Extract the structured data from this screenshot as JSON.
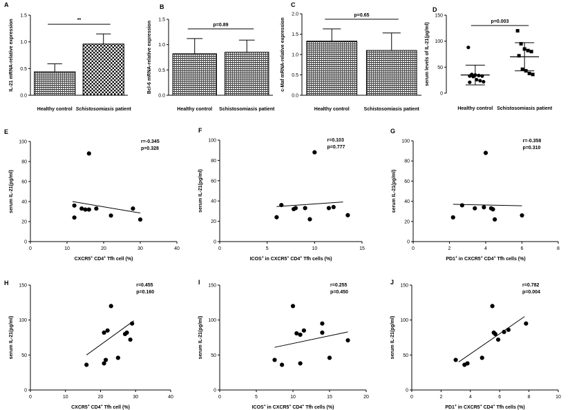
{
  "chart_data": [
    {
      "id": "A",
      "type": "bar",
      "panel_label": "A",
      "categories": [
        {
          "text": "Healthy control",
          "italic": false
        },
        {
          "text": "Schistosomiasis",
          "italic": true,
          "suffix": " patient"
        }
      ],
      "values": [
        0.44,
        0.96
      ],
      "errors": [
        0.15,
        0.19
      ],
      "ylabel": "IL-21 mRNA-relative expression",
      "ylim": [
        0,
        1.5
      ],
      "yticks": [
        "0.0",
        "0.5",
        "1.0",
        "1.5"
      ],
      "annotation": "**",
      "fills": [
        "hatch",
        "check"
      ]
    },
    {
      "id": "B",
      "type": "bar",
      "panel_label": "B",
      "categories": [
        {
          "text": "Healthy control",
          "italic": false
        },
        {
          "text": "Schistosomiasis patient",
          "italic": false
        }
      ],
      "values": [
        0.82,
        0.85
      ],
      "errors": [
        0.3,
        0.24
      ],
      "ylabel": "Bcl-6 mRNA-relative expression",
      "ylim": [
        0,
        1.5
      ],
      "yticks": [
        "0.0",
        "0.5",
        "1.0",
        "1.5"
      ],
      "annotation": "p=0.89",
      "fills": [
        "hatch",
        "hatch"
      ]
    },
    {
      "id": "C",
      "type": "bar",
      "panel_label": "C",
      "categories": [
        {
          "text": "Healthy control",
          "italic": false
        },
        {
          "text": "Schistosomiasis patient",
          "italic": false
        }
      ],
      "values": [
        1.33,
        1.1
      ],
      "errors": [
        0.3,
        0.43
      ],
      "ylabel": "c-Maf mRNA-relative expression",
      "ylim": [
        0,
        2.0
      ],
      "yticks": [
        "0.0",
        "0.5",
        "1.0",
        "1.5",
        "2.0"
      ],
      "annotation": "p=0.65",
      "fills": [
        "hatch",
        "hatch"
      ]
    },
    {
      "id": "D",
      "type": "scatter",
      "panel_label": "D",
      "categories": [
        {
          "text": "Healthy control",
          "italic": false
        },
        {
          "text": "Schistosomiasis patient",
          "italic": false
        }
      ],
      "groups": [
        {
          "name": "Healthy control",
          "marker": "circle",
          "mean": 35,
          "sd": 19,
          "values": [
            88,
            36,
            35,
            34,
            33,
            33,
            32,
            26,
            24,
            22,
            21
          ]
        },
        {
          "name": "Schistosomiasis patient",
          "marker": "square",
          "mean": 70,
          "sd": 27,
          "values": [
            120,
            95,
            85,
            82,
            80,
            72,
            46,
            43,
            38,
            36
          ]
        }
      ],
      "ylabel": "serum levels of IL-21(pg/ml)",
      "ylim": [
        0,
        150
      ],
      "yticks": [
        "0",
        "50",
        "100",
        "150"
      ],
      "annotation": "p=0.003"
    },
    {
      "id": "E",
      "type": "scatter",
      "panel_label": "E",
      "x": [
        12,
        12,
        14,
        15,
        16,
        18,
        22,
        28,
        30,
        16
      ],
      "y": [
        36,
        24,
        33,
        32,
        32,
        33,
        26,
        33,
        22,
        88
      ],
      "trend": [
        [
          11.5,
          40
        ],
        [
          30,
          28.5
        ]
      ],
      "xlim": [
        0,
        40
      ],
      "ylim": [
        0,
        100
      ],
      "xticks": [
        "0",
        "10",
        "20",
        "30",
        "40"
      ],
      "yticks": [
        "0",
        "20",
        "40",
        "60",
        "80",
        "100"
      ],
      "xlabel": [
        {
          "t": "CXCR5"
        },
        {
          "t": "+",
          "sup": true
        },
        {
          "t": "  CD4"
        },
        {
          "t": "+",
          "sup": true
        },
        {
          "t": "  Tfh cell (%)"
        }
      ],
      "ylabel": "serum IL-21(pg/ml)",
      "r": "r=-0.345",
      "p": "p=0.328"
    },
    {
      "id": "F",
      "type": "scatter",
      "panel_label": "F",
      "x": [
        6,
        6.5,
        7.8,
        8,
        9,
        9.5,
        11.5,
        12,
        13.5,
        10
      ],
      "y": [
        24,
        36,
        32,
        33,
        33,
        22,
        33,
        34,
        26,
        88
      ],
      "trend": [
        [
          6,
          34.5
        ],
        [
          13,
          39
        ]
      ],
      "xlim": [
        0,
        15
      ],
      "ylim": [
        0,
        100
      ],
      "xticks": [
        "0",
        "5",
        "10",
        "15"
      ],
      "yticks": [
        "0",
        "20",
        "40",
        "60",
        "80",
        "100"
      ],
      "xlabel": [
        {
          "t": "ICOS"
        },
        {
          "t": "+",
          "sup": true
        },
        {
          "t": "  in  CXCR5"
        },
        {
          "t": "+",
          "sup": true
        },
        {
          "t": "  CD4"
        },
        {
          "t": "+",
          "sup": true
        },
        {
          "t": "  Tfh cells (%)"
        }
      ],
      "ylabel": "serum IL-21(pg/ml)",
      "r": "r=0.103",
      "p": "p=0.777"
    },
    {
      "id": "G",
      "type": "scatter",
      "panel_label": "G",
      "x": [
        2.2,
        2.7,
        3.4,
        3.9,
        4.3,
        4.4,
        4.5,
        6.0,
        4.0
      ],
      "y": [
        24,
        36,
        33,
        34,
        33,
        32,
        22,
        26,
        88
      ],
      "trend": [
        [
          2.2,
          37
        ],
        [
          6,
          35.5
        ]
      ],
      "xlim": [
        0,
        8
      ],
      "ylim": [
        0,
        100
      ],
      "xticks": [
        "0",
        "2",
        "4",
        "6",
        "8"
      ],
      "yticks": [
        "0",
        "20",
        "40",
        "60",
        "80",
        "100"
      ],
      "xlabel": [
        {
          "t": "PD1"
        },
        {
          "t": "+",
          "sup": true
        },
        {
          "t": "  in CXCR5"
        },
        {
          "t": "+",
          "sup": true
        },
        {
          "t": "  CD4"
        },
        {
          "t": "+",
          "sup": true
        },
        {
          "t": "  Tfh cells (%)"
        }
      ],
      "ylabel": "serum IL-21(pg/ml)",
      "r": "r=-0.358",
      "p": "p=0.310"
    },
    {
      "id": "H",
      "type": "scatter",
      "panel_label": "H",
      "x": [
        16,
        21,
        21.5,
        21,
        22,
        23,
        25,
        27,
        27.5,
        28.5,
        29
      ],
      "y": [
        36,
        38,
        43,
        82,
        85,
        120,
        46,
        80,
        82,
        72,
        95
      ],
      "trend": [
        [
          16,
          50
        ],
        [
          29.5,
          99
        ]
      ],
      "xlim": [
        0,
        40
      ],
      "ylim": [
        0,
        150
      ],
      "xticks": [
        "0",
        "10",
        "20",
        "30",
        "40"
      ],
      "yticks": [
        "0",
        "50",
        "100",
        "150"
      ],
      "xlabel": [
        {
          "t": "CXCR5"
        },
        {
          "t": "+",
          "sup": true
        },
        {
          "t": "  CD4"
        },
        {
          "t": "+",
          "sup": true
        },
        {
          "t": "  Tfh cell (%)"
        }
      ],
      "ylabel": "serum IL-21(pg/ml)",
      "r": "r=0.455",
      "p": "p=0.160"
    },
    {
      "id": "I",
      "type": "scatter",
      "panel_label": "I",
      "x": [
        7.5,
        8.5,
        10,
        10.5,
        11,
        11.5,
        11,
        14,
        14,
        15,
        17.5
      ],
      "y": [
        43,
        36,
        120,
        81,
        38,
        85,
        79,
        95,
        82,
        46,
        71
      ],
      "trend": [
        [
          7.5,
          61
        ],
        [
          17.5,
          83
        ]
      ],
      "xlim": [
        0,
        20
      ],
      "ylim": [
        0,
        150
      ],
      "xticks": [
        "0",
        "5",
        "10",
        "15",
        "20"
      ],
      "yticks": [
        "0",
        "50",
        "100",
        "150"
      ],
      "xlabel": [
        {
          "t": "ICOS"
        },
        {
          "t": "+",
          "sup": true
        },
        {
          "t": "  in  CXCR5"
        },
        {
          "t": "+",
          "sup": true
        },
        {
          "t": "  CD4"
        },
        {
          "t": "+",
          "sup": true
        },
        {
          "t": "  Tfh cells (%)"
        }
      ],
      "ylabel": "serum IL-21(pg/ml)",
      "r": "r=0.255",
      "p": "p=0.450"
    },
    {
      "id": "J",
      "type": "scatter",
      "panel_label": "J",
      "x": [
        3.0,
        3.6,
        3.8,
        4.8,
        5.5,
        5.6,
        5.7,
        5.9,
        6.3,
        6.6,
        7.8
      ],
      "y": [
        43,
        36,
        38,
        46,
        120,
        82,
        80,
        72,
        83,
        86,
        95
      ],
      "trend": [
        [
          3.2,
          40
        ],
        [
          7.7,
          105
        ]
      ],
      "xlim": [
        0,
        10
      ],
      "ylim": [
        0,
        150
      ],
      "xticks": [
        "0",
        "2",
        "4",
        "6",
        "8",
        "10"
      ],
      "yticks": [
        "0",
        "50",
        "100",
        "150"
      ],
      "xlabel": [
        {
          "t": "PD1"
        },
        {
          "t": "+",
          "sup": true
        },
        {
          "t": " in CXCR5"
        },
        {
          "t": "+",
          "sup": true
        },
        {
          "t": "  CD4"
        },
        {
          "t": "+",
          "sup": true
        },
        {
          "t": "  Tfh cells (%)"
        }
      ],
      "ylabel": "serum IL-21(pg/ml)",
      "r": "r=0.782",
      "p": "p=0.004"
    }
  ]
}
